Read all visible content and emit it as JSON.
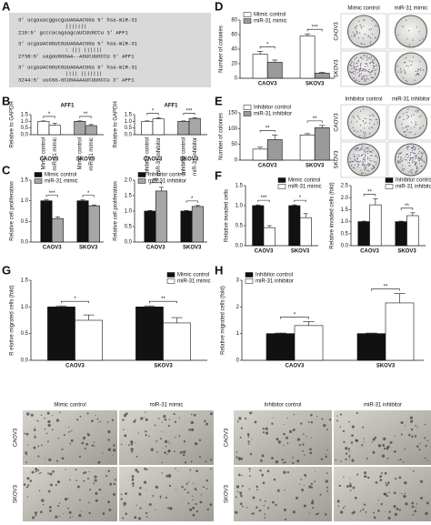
{
  "panel_labels": [
    "A",
    "B",
    "C",
    "D",
    "E",
    "F",
    "G",
    "H"
  ],
  "alignments": [
    [
      "3' ucgauacggucguUAGAACGGa 5' hsa-miR-31",
      "|||||||",
      "210:5' gcccacagaagcaUCUUGCCu 3' AFF1"
    ],
    [
      "3' ucgaUACGGUCGUUAGAACGGa 5' hsa-miR-31",
      ": ||| ||||||",
      "2738:5' uagaUGGGAA--AGUCUUGCCU 3' AFF1"
    ],
    [
      "3' ucgaUACGGUCGUUAGAACGGa 5' hsa-miR-31",
      "|||| |||||||",
      "3244:5' uuCGG-GCUGAAAAUCUUGCCu 3' AFF1"
    ]
  ],
  "colony_images": [
    {
      "columns": [
        "Mimic control",
        "miR-31 mimic"
      ],
      "rows": [
        "CAOV3",
        "SKOV3"
      ]
    },
    {
      "columns": [
        "Inhibitor control",
        "miR-31 inhibitor"
      ],
      "rows": [
        "CAOV3",
        "SKOV3"
      ]
    }
  ],
  "migration_images": [
    {
      "columns": [
        "Mimic control",
        "miR-31 mimic"
      ],
      "rows": [
        "CAOV3",
        "SKOV3"
      ]
    },
    {
      "columns": [
        "Inhibitor control",
        "miR-31 inhibitor"
      ],
      "rows": [
        "CAOV3",
        "SKOV3"
      ]
    }
  ],
  "chart_data": [
    {
      "type": "bar",
      "title": "AFF1",
      "y_label": "Relative to GAPDH",
      "categories": [
        "CAOV3",
        "SKOV3"
      ],
      "category_colors": [
        "#ffffff",
        "#a6a6a6"
      ],
      "legend": "under-bars",
      "series": [
        {
          "name": "Mimic control",
          "color": "#ffffff",
          "values": [
            1.0,
            1.0
          ],
          "errors": [
            0.03,
            0.03
          ]
        },
        {
          "name": "miR-31 mimic",
          "color": "#ffffff",
          "values": [
            0.7,
            0.68
          ],
          "errors": [
            0.15,
            0.08
          ]
        }
      ],
      "significance": [
        "*",
        "**"
      ],
      "ylim": [
        0,
        1.5
      ],
      "yticks": [
        {
          "value": 0,
          "label": "0.0"
        },
        0.5,
        {
          "value": 1,
          "label": "1.0"
        },
        1.5
      ]
    },
    {
      "type": "bar",
      "title": "AFF1",
      "y_label": "Relative to GAPDH",
      "categories": [
        "CAOV3",
        "SKOV3"
      ],
      "category_colors": [
        "#ffffff",
        "#a6a6a6"
      ],
      "legend": "under-bars",
      "series": [
        {
          "name": "Inhibitor control",
          "color": "#ffffff",
          "values": [
            1.0,
            1.0
          ],
          "errors": [
            0.03,
            0.03
          ]
        },
        {
          "name": "miR-31 inhibitor",
          "color": "#ffffff",
          "values": [
            1.18,
            1.22
          ],
          "errors": [
            0.08,
            0.04
          ]
        }
      ],
      "significance": [
        "*",
        "***"
      ],
      "ylim": [
        0,
        1.5
      ],
      "yticks": [
        {
          "value": 0,
          "label": "0.0"
        },
        0.5,
        {
          "value": 1,
          "label": "1.0"
        },
        1.5
      ]
    },
    {
      "type": "bar",
      "y_label": "Relative cell proliferation",
      "categories": [
        "CAOV3",
        "SKOV3"
      ],
      "legend": "upper-left",
      "series": [
        {
          "name": "Mimic control",
          "color": "#111111",
          "values": [
            1.0,
            1.0
          ],
          "errors": [
            0.02,
            0.02
          ]
        },
        {
          "name": "miR-31 mimic",
          "color": "#a6a6a6",
          "values": [
            0.57,
            0.88
          ],
          "errors": [
            0.04,
            0.02
          ]
        }
      ],
      "significance": [
        "***",
        "*"
      ],
      "ylim": [
        0,
        1.5
      ],
      "yticks": [
        {
          "value": 0,
          "label": "0.0"
        },
        0.5,
        {
          "value": 1,
          "label": "1.0"
        },
        1.5
      ]
    },
    {
      "type": "bar",
      "y_label": "Relative cell proliferation",
      "categories": [
        "CAOV3",
        "SKOV3"
      ],
      "legend": "upper-left",
      "series": [
        {
          "name": "Inhibitor control",
          "color": "#111111",
          "values": [
            1.0,
            1.0
          ],
          "errors": [
            0.02,
            0.02
          ]
        },
        {
          "name": "miR-31 inhibitor",
          "color": "#a6a6a6",
          "values": [
            1.65,
            1.15
          ],
          "errors": [
            0.12,
            0.03
          ]
        }
      ],
      "significance": [
        "***",
        "*"
      ],
      "ylim": [
        0,
        2
      ],
      "yticks": [
        {
          "value": 0,
          "label": "0.0"
        },
        0.5,
        {
          "value": 1,
          "label": "1.0"
        },
        1.5,
        {
          "value": 2,
          "label": "2.0"
        }
      ]
    },
    {
      "type": "bar",
      "y_label": "Number of colonies",
      "categories": [
        "CAOV3",
        "SKOV3"
      ],
      "legend": "upper-left",
      "series": [
        {
          "name": "Mimic control",
          "color": "#ffffff",
          "values": [
            33,
            58
          ],
          "errors": [
            4,
            3
          ]
        },
        {
          "name": "miR-31 mimic",
          "color": "#9a9a9a",
          "values": [
            22,
            7
          ],
          "errors": [
            3,
            1
          ]
        }
      ],
      "significance": [
        "*",
        "***"
      ],
      "ylim": [
        0,
        80
      ],
      "yticks": [
        0,
        20,
        40,
        60,
        80
      ]
    },
    {
      "type": "bar",
      "y_label": "Number of colonies",
      "categories": [
        "CAOV3",
        "SKOV3"
      ],
      "legend": "upper-left",
      "series": [
        {
          "name": "Inhibitor control",
          "color": "#ffffff",
          "values": [
            35,
            80
          ],
          "errors": [
            6,
            4
          ]
        },
        {
          "name": "miR-31 inhibitor",
          "color": "#9a9a9a",
          "values": [
            65,
            103
          ],
          "errors": [
            15,
            7
          ]
        }
      ],
      "significance": [
        "**",
        "**"
      ],
      "ylim": [
        0,
        150
      ],
      "yticks": [
        0,
        50,
        100,
        150
      ]
    },
    {
      "type": "bar",
      "y_label": "Relative invaded cells",
      "categories": [
        "CAOV3",
        "SKOV3"
      ],
      "legend": "upper-right",
      "series": [
        {
          "name": "Mimic control",
          "color": "#111111",
          "values": [
            1.0,
            1.0
          ],
          "errors": [
            0.02,
            0.02
          ]
        },
        {
          "name": "miR-31 mimic",
          "color": "#ffffff",
          "values": [
            0.45,
            0.7
          ],
          "errors": [
            0.05,
            0.1
          ]
        }
      ],
      "significance": [
        "***",
        "*"
      ],
      "ylim": [
        0,
        1.5
      ],
      "yticks": [
        {
          "value": 0,
          "label": "0.0"
        },
        0.5,
        {
          "value": 1,
          "label": "1.0"
        },
        1.5
      ]
    },
    {
      "type": "bar",
      "y_label": "Relative invaded cells (fold)",
      "categories": [
        "CAOV3",
        "SKOV3"
      ],
      "legend": "upper-right",
      "series": [
        {
          "name": "Inhibitor control",
          "color": "#111111",
          "values": [
            1.0,
            1.0
          ],
          "errors": [
            0.02,
            0.02
          ]
        },
        {
          "name": "miR-31 inhibitor",
          "color": "#ffffff",
          "values": [
            1.7,
            1.25
          ],
          "errors": [
            0.25,
            0.12
          ]
        }
      ],
      "significance": [
        "**",
        "**"
      ],
      "ylim": [
        0,
        2.5
      ],
      "yticks": [
        {
          "value": 0,
          "label": "0.0"
        },
        0.5,
        {
          "value": 1,
          "label": "1.0"
        },
        1.5,
        {
          "value": 2,
          "label": "2.0"
        },
        2.5
      ]
    },
    {
      "type": "bar",
      "y_label": "R elative migrated cells (fold)",
      "categories": [
        "CAOV3",
        "SKOV3"
      ],
      "legend": "upper-right",
      "series": [
        {
          "name": "Mimic control",
          "color": "#111111",
          "values": [
            1.0,
            1.0
          ],
          "errors": [
            0.02,
            0.02
          ]
        },
        {
          "name": "miR-31 mimic",
          "color": "#ffffff",
          "values": [
            0.75,
            0.7
          ],
          "errors": [
            0.1,
            0.1
          ]
        }
      ],
      "significance": [
        "*",
        "**"
      ],
      "ylim": [
        0,
        1.5
      ],
      "yticks": [
        {
          "value": 0,
          "label": "0.0"
        },
        0.5,
        {
          "value": 1,
          "label": "1.0"
        },
        1.5
      ]
    },
    {
      "type": "bar",
      "y_label": "Relative migrated cells (fold)",
      "categories": [
        "CAOV3",
        "SKOV3"
      ],
      "legend": "upper-left",
      "series": [
        {
          "name": "Inhibitor control",
          "color": "#111111",
          "values": [
            1.0,
            1.0
          ],
          "errors": [
            0.02,
            0.02
          ]
        },
        {
          "name": "miR-31 inhibitor",
          "color": "#ffffff",
          "values": [
            1.3,
            2.15
          ],
          "errors": [
            0.15,
            0.35
          ]
        }
      ],
      "significance": [
        "*",
        "**"
      ],
      "ylim": [
        0,
        3
      ],
      "yticks": [
        0,
        1,
        2,
        3
      ]
    }
  ]
}
